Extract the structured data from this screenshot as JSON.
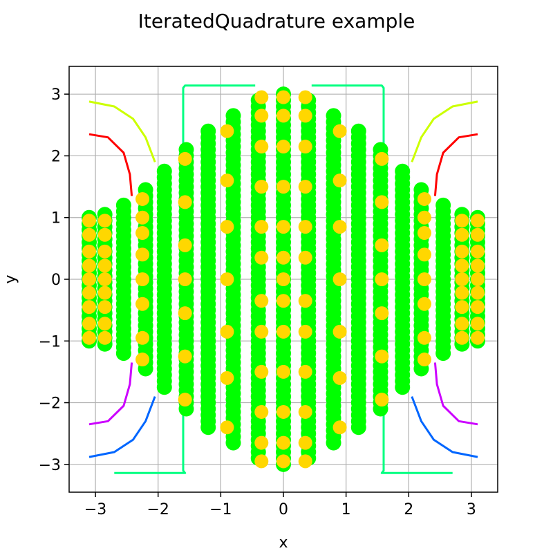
{
  "chart_data": {
    "type": "scatter",
    "title": "IteratedQuadrature example",
    "xlabel": "x",
    "ylabel": "y",
    "xlim": [
      -3.42,
      3.42
    ],
    "ylim": [
      -3.45,
      3.45
    ],
    "xticks": [
      -3,
      -2,
      -1,
      0,
      1,
      2,
      3
    ],
    "yticks": [
      -3,
      -2,
      -1,
      0,
      1,
      2,
      3
    ],
    "xtick_labels": [
      "−3",
      "−2",
      "−1",
      "0",
      "1",
      "2",
      "3"
    ],
    "ytick_labels": [
      "−3",
      "−2",
      "−1",
      "0",
      "1",
      "2",
      "3"
    ],
    "grid": true,
    "colors": {
      "outer_points": "#00ff00",
      "inner_points": "#ffd700",
      "curve_red": "#ff0000",
      "curve_yellow": "#ccff00",
      "curve_blue": "#0066ff",
      "curve_purple": "#cc00ff",
      "curve_teal": "#00ff80",
      "grid": "#b0b0b0"
    },
    "point_columns": [
      {
        "x": -3.1,
        "ymin": -1.0,
        "ymax": 1.0
      },
      {
        "x": -2.85,
        "ymin": -1.05,
        "ymax": 1.05
      },
      {
        "x": -2.55,
        "ymin": -1.2,
        "ymax": 1.2
      },
      {
        "x": -2.2,
        "ymin": -1.45,
        "ymax": 1.45
      },
      {
        "x": -1.9,
        "ymin": -1.75,
        "ymax": 1.75
      },
      {
        "x": -1.55,
        "ymin": -2.1,
        "ymax": 2.1
      },
      {
        "x": -1.2,
        "ymin": -2.4,
        "ymax": 2.4
      },
      {
        "x": -0.8,
        "ymin": -2.65,
        "ymax": 2.65
      },
      {
        "x": -0.4,
        "ymin": -2.9,
        "ymax": 2.9
      },
      {
        "x": 0.0,
        "ymin": -3.0,
        "ymax": 3.0
      },
      {
        "x": 0.4,
        "ymin": -2.9,
        "ymax": 2.9
      },
      {
        "x": 0.8,
        "ymin": -2.65,
        "ymax": 2.65
      },
      {
        "x": 1.2,
        "ymin": -2.4,
        "ymax": 2.4
      },
      {
        "x": 1.55,
        "ymin": -2.1,
        "ymax": 2.1
      },
      {
        "x": 1.9,
        "ymin": -1.75,
        "ymax": 1.75
      },
      {
        "x": 2.2,
        "ymin": -1.45,
        "ymax": 1.45
      },
      {
        "x": 2.55,
        "ymin": -1.2,
        "ymax": 1.2
      },
      {
        "x": 2.85,
        "ymin": -1.05,
        "ymax": 1.05
      },
      {
        "x": 3.1,
        "ymin": -1.0,
        "ymax": 1.0
      }
    ],
    "inner_columns": [
      {
        "x": -3.1,
        "ys": [
          -0.95,
          -0.72,
          -0.45,
          -0.22,
          0.0,
          0.22,
          0.45,
          0.72,
          0.95
        ]
      },
      {
        "x": -2.85,
        "ys": [
          -0.95,
          -0.72,
          -0.45,
          -0.22,
          0.0,
          0.22,
          0.45,
          0.72,
          0.95
        ]
      },
      {
        "x": -2.25,
        "ys": [
          -1.3,
          -0.95,
          -0.4,
          0.0,
          0.4,
          0.75,
          1.0,
          1.3
        ]
      },
      {
        "x": -1.57,
        "ys": [
          -1.95,
          -1.25,
          -0.55,
          0.0,
          0.55,
          1.25,
          1.95
        ]
      },
      {
        "x": -0.9,
        "ys": [
          -2.4,
          -1.6,
          -0.85,
          0.0,
          0.85,
          1.6,
          2.4
        ]
      },
      {
        "x": -0.35,
        "ys": [
          -2.95,
          -2.65,
          -2.15,
          -1.5,
          -0.85,
          -0.35,
          0.35,
          0.85,
          1.5,
          2.15,
          2.65,
          2.95
        ]
      },
      {
        "x": 0.0,
        "ys": [
          -2.95,
          -2.65,
          -2.15,
          -1.5,
          -0.85,
          -0.35,
          0.0,
          0.35,
          0.85,
          1.5,
          2.15,
          2.65,
          2.95
        ]
      },
      {
        "x": 0.35,
        "ys": [
          -2.95,
          -2.65,
          -2.15,
          -1.5,
          -0.85,
          -0.35,
          0.35,
          0.85,
          1.5,
          2.15,
          2.65,
          2.95
        ]
      },
      {
        "x": 0.9,
        "ys": [
          -2.4,
          -1.6,
          -0.85,
          0.0,
          0.85,
          1.6,
          2.4
        ]
      },
      {
        "x": 1.57,
        "ys": [
          -1.95,
          -1.25,
          -0.55,
          0.0,
          0.55,
          1.25,
          1.95
        ]
      },
      {
        "x": 2.25,
        "ys": [
          -1.3,
          -0.95,
          -0.4,
          0.0,
          0.4,
          0.75,
          1.0,
          1.3
        ]
      },
      {
        "x": 2.85,
        "ys": [
          -0.95,
          -0.72,
          -0.45,
          -0.22,
          0.0,
          0.22,
          0.45,
          0.72,
          0.95
        ]
      },
      {
        "x": 3.1,
        "ys": [
          -0.95,
          -0.72,
          -0.45,
          -0.22,
          0.0,
          0.22,
          0.45,
          0.72,
          0.95
        ]
      }
    ],
    "curves": [
      {
        "color_key": "curve_yellow",
        "points": [
          [
            -3.1,
            2.88
          ],
          [
            -2.7,
            2.8
          ],
          [
            -2.4,
            2.6
          ],
          [
            -2.2,
            2.3
          ],
          [
            -2.05,
            1.9
          ]
        ]
      },
      {
        "color_key": "curve_yellow",
        "points": [
          [
            3.1,
            2.88
          ],
          [
            2.7,
            2.8
          ],
          [
            2.4,
            2.6
          ],
          [
            2.2,
            2.3
          ],
          [
            2.05,
            1.9
          ]
        ]
      },
      {
        "color_key": "curve_red",
        "points": [
          [
            -3.1,
            2.35
          ],
          [
            -2.8,
            2.3
          ],
          [
            -2.55,
            2.05
          ],
          [
            -2.45,
            1.7
          ],
          [
            -2.42,
            1.35
          ]
        ]
      },
      {
        "color_key": "curve_red",
        "points": [
          [
            3.1,
            2.35
          ],
          [
            2.8,
            2.3
          ],
          [
            2.55,
            2.05
          ],
          [
            2.45,
            1.7
          ],
          [
            2.42,
            1.35
          ]
        ]
      },
      {
        "color_key": "curve_purple",
        "points": [
          [
            -3.1,
            -2.35
          ],
          [
            -2.8,
            -2.3
          ],
          [
            -2.55,
            -2.05
          ],
          [
            -2.45,
            -1.7
          ],
          [
            -2.42,
            -1.35
          ]
        ]
      },
      {
        "color_key": "curve_purple",
        "points": [
          [
            3.1,
            -2.35
          ],
          [
            2.8,
            -2.3
          ],
          [
            2.55,
            -2.05
          ],
          [
            2.45,
            -1.7
          ],
          [
            2.42,
            -1.35
          ]
        ]
      },
      {
        "color_key": "curve_blue",
        "points": [
          [
            -3.1,
            -2.88
          ],
          [
            -2.7,
            -2.8
          ],
          [
            -2.4,
            -2.6
          ],
          [
            -2.2,
            -2.3
          ],
          [
            -2.05,
            -1.9
          ]
        ]
      },
      {
        "color_key": "curve_blue",
        "points": [
          [
            3.1,
            -2.88
          ],
          [
            2.7,
            -2.8
          ],
          [
            2.4,
            -2.6
          ],
          [
            2.2,
            -2.3
          ],
          [
            2.05,
            -1.9
          ]
        ]
      },
      {
        "color_key": "curve_teal",
        "points": [
          [
            -0.45,
            3.14
          ],
          [
            -1.57,
            3.14
          ],
          [
            -1.6,
            3.1
          ],
          [
            -1.6,
            -3.1
          ],
          [
            -1.57,
            -3.14
          ],
          [
            -2.7,
            -3.14
          ]
        ]
      },
      {
        "color_key": "curve_teal",
        "points": [
          [
            0.45,
            3.14
          ],
          [
            1.57,
            3.14
          ],
          [
            1.6,
            3.1
          ],
          [
            1.6,
            -3.1
          ],
          [
            1.57,
            -3.14
          ],
          [
            2.7,
            -3.14
          ]
        ]
      }
    ]
  }
}
